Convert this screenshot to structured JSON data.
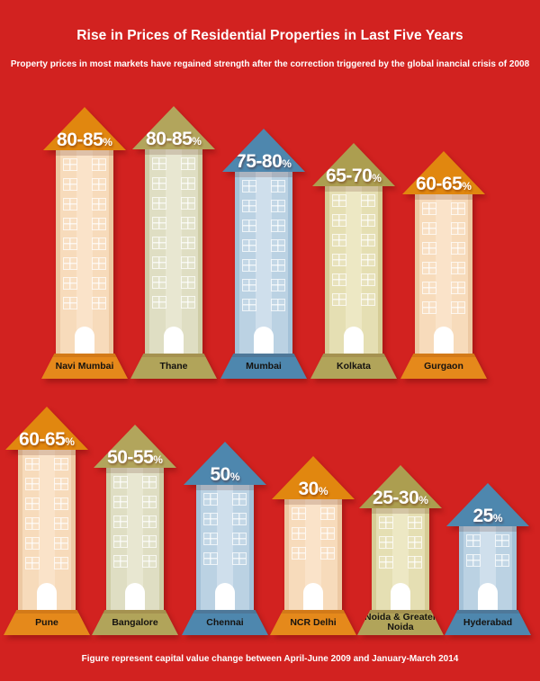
{
  "header": {
    "title": "Rise in Prices of Residential Properties in Last Five Years",
    "subtitle": "Property prices in most markets have regained strength after the correction triggered by the global inancial crisis of 2008"
  },
  "footer": {
    "note": "Figure represent capital value change between April-June 2009 and January-March 2014"
  },
  "colors": {
    "background": "#d22220",
    "orange": "#e1870f",
    "olive": "#b1a458",
    "blue": "#4e87ae",
    "text_on_red": "#ffffff",
    "city_label_text": "#151310"
  },
  "themes": {
    "orange": {
      "roof": "#e1870f",
      "body": "#f7dbbb",
      "body_light": "#fae3c9",
      "body_edge": "#edc9a3",
      "base": "#e5891b"
    },
    "olive": {
      "roof": "#b2a55c",
      "body": "#dfdec3",
      "body_light": "#e8e7d1",
      "body_edge": "#cfcda6",
      "base": "#b1a45a"
    },
    "khaki": {
      "roof": "#ac9e50",
      "body": "#e5dfb3",
      "body_light": "#ede8c4",
      "body_edge": "#d6cd96",
      "base": "#b1a45a"
    },
    "blue": {
      "roof": "#4e87ae",
      "body": "#bbd2e3",
      "body_light": "#cfdfec",
      "body_edge": "#a4c2d8",
      "base": "#4e87ae"
    }
  },
  "rows": [
    {
      "buildings": [
        {
          "city": "Navi Mumbai",
          "percent": "80-85",
          "unit": "%",
          "theme": "orange",
          "floors": 8
        },
        {
          "city": "Thane",
          "percent": "80-85",
          "unit": "%",
          "theme": "olive",
          "floors": 8
        },
        {
          "city": "Mumbai",
          "percent": "75-80",
          "unit": "%",
          "theme": "blue",
          "floors": 7
        },
        {
          "city": "Kolkata",
          "percent": "65-70",
          "unit": "%",
          "theme": "khaki",
          "floors": 6
        },
        {
          "city": "Gurgaon",
          "percent": "60-65",
          "unit": "%",
          "theme": "orange",
          "floors": 6
        }
      ]
    },
    {
      "buildings": [
        {
          "city": "Pune",
          "percent": "60-65",
          "unit": "%",
          "theme": "orange",
          "floors": 6
        },
        {
          "city": "Bangalore",
          "percent": "50-55",
          "unit": "%",
          "theme": "olive",
          "floors": 5
        },
        {
          "city": "Chennai",
          "percent": "50",
          "unit": "%",
          "theme": "blue",
          "floors": 4
        },
        {
          "city": "NCR Delhi",
          "percent": "30",
          "unit": "%",
          "theme": "orange",
          "floors": 3
        },
        {
          "city": "Noida & Greater Noida",
          "percent": "25-30",
          "unit": "%",
          "theme": "khaki",
          "floors": 3
        },
        {
          "city": "Hyderabad",
          "percent": "25",
          "unit": "%",
          "theme": "blue",
          "floors": 2
        }
      ]
    }
  ],
  "chart_data": {
    "type": "bar",
    "title": "Rise in Prices of Residential Properties in Last Five Years",
    "subtitle": "Property prices in most markets have regained strength after the correction triggered by the global inancial crisis of 2008",
    "note": "Figure represent capital value change between April-June 2009 and January-March 2014",
    "unit": "%",
    "categories": [
      "Navi Mumbai",
      "Thane",
      "Mumbai",
      "Kolkata",
      "Gurgaon",
      "Pune",
      "Bangalore",
      "Chennai",
      "NCR Delhi",
      "Noida & Greater Noida",
      "Hyderabad"
    ],
    "values": [
      "80-85",
      "80-85",
      "75-80",
      "65-70",
      "60-65",
      "60-65",
      "50-55",
      "50",
      "30",
      "25-30",
      "25"
    ],
    "legend_position": "none",
    "grid": false
  }
}
